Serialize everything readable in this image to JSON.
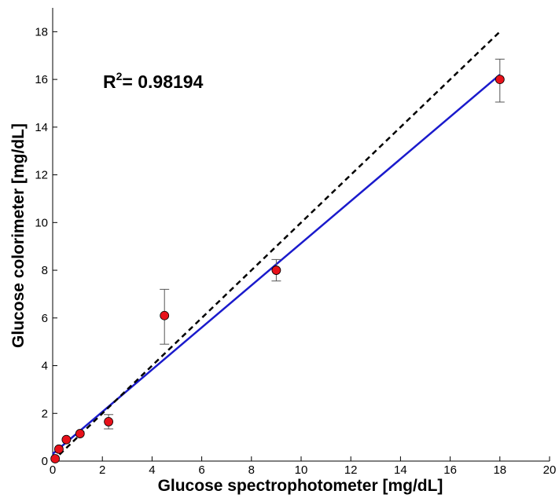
{
  "chart_data": {
    "type": "scatter",
    "xlabel": "Glucose spectrophotometer [mg/dL]",
    "ylabel": "Glucose colorimeter [mg/dL]",
    "xlim": [
      0,
      20
    ],
    "ylim": [
      0,
      19
    ],
    "x_ticks": [
      0,
      2,
      4,
      6,
      8,
      10,
      12,
      14,
      16,
      18,
      20
    ],
    "y_ticks": [
      0,
      2,
      4,
      6,
      8,
      10,
      12,
      14,
      16,
      18
    ],
    "grid": false,
    "annotation": {
      "r2_base": "R",
      "r2_sup": "2",
      "r2_value": "= 0.98194"
    },
    "series": [
      {
        "type": "scatter",
        "color": "#e8111a",
        "points": [
          {
            "x": 0.1,
            "y": 0.1
          },
          {
            "x": 0.25,
            "y": 0.5
          },
          {
            "x": 0.55,
            "y": 0.9
          },
          {
            "x": 1.1,
            "y": 1.15
          },
          {
            "x": 2.25,
            "y": 1.65,
            "err_low": 1.35,
            "err_high": 1.95
          },
          {
            "x": 4.5,
            "y": 6.1,
            "err_low": 4.9,
            "err_high": 7.2
          },
          {
            "x": 9.0,
            "y": 8.0,
            "err_low": 7.55,
            "err_high": 8.45
          },
          {
            "x": 18.0,
            "y": 16.0,
            "err_low": 15.05,
            "err_high": 16.85
          }
        ]
      },
      {
        "type": "line",
        "style": "solid",
        "color": "#1a1acc",
        "points": [
          {
            "x": 0.0,
            "y": 0.3
          },
          {
            "x": 18.0,
            "y": 16.2
          }
        ]
      },
      {
        "type": "line",
        "style": "dashed",
        "color": "#000000",
        "points": [
          {
            "x": 0.0,
            "y": 0.0
          },
          {
            "x": 18.0,
            "y": 18.0
          }
        ]
      }
    ]
  }
}
